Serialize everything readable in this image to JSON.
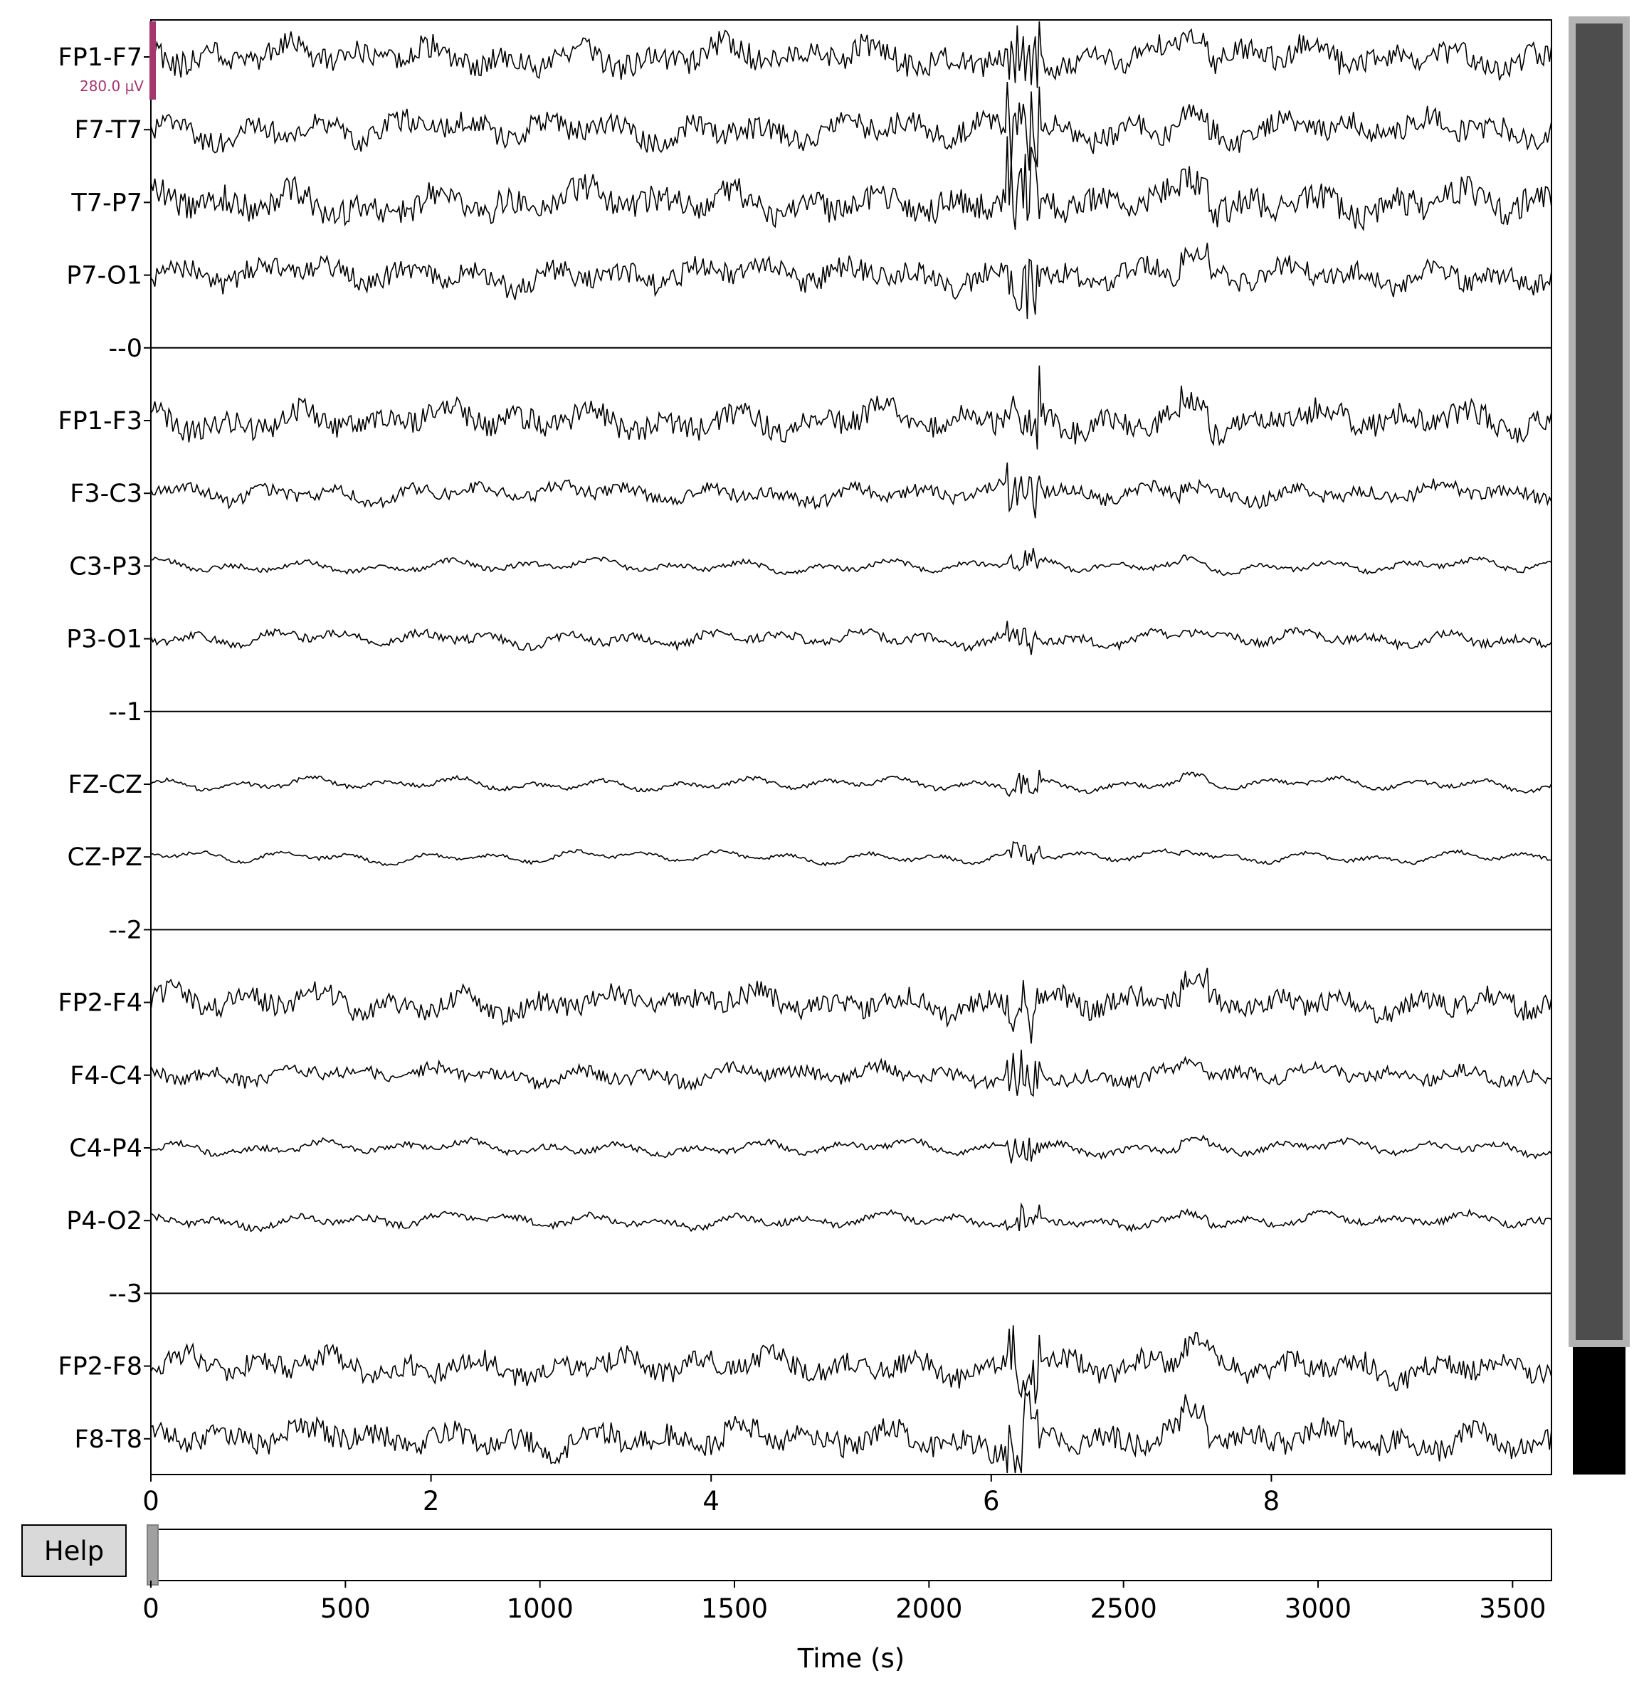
{
  "channels": [
    "FP1-F7",
    "F7-T7",
    "T7-P7",
    "P7-O1",
    "FP1-F3",
    "F3-C3",
    "C3-P3",
    "P3-O1",
    "FZ-CZ",
    "CZ-PZ",
    "FP2-F4",
    "F4-C4",
    "C4-P4",
    "P4-O2",
    "FP2-F8",
    "F8-T8"
  ],
  "rows": [
    {
      "label": "FP1-F7",
      "kind": "channel",
      "amp": 1.15,
      "noise": 0.85,
      "seed": 11
    },
    {
      "label": "F7-T7",
      "kind": "channel",
      "amp": 1.05,
      "noise": 0.85,
      "seed": 12
    },
    {
      "label": "T7-P7",
      "kind": "channel",
      "amp": 1.2,
      "noise": 0.9,
      "seed": 13
    },
    {
      "label": "P7-O1",
      "kind": "channel",
      "amp": 1.0,
      "noise": 0.85,
      "seed": 14
    },
    {
      "label": "--0",
      "kind": "separator"
    },
    {
      "label": "FP1-F3",
      "kind": "channel",
      "amp": 1.1,
      "noise": 0.85,
      "seed": 15
    },
    {
      "label": "F3-C3",
      "kind": "channel",
      "amp": 0.75,
      "noise": 0.7,
      "seed": 16
    },
    {
      "label": "C3-P3",
      "kind": "channel",
      "amp": 0.55,
      "noise": 0.35,
      "seed": 17
    },
    {
      "label": "P3-O1",
      "kind": "channel",
      "amp": 0.65,
      "noise": 0.5,
      "seed": 18
    },
    {
      "label": "--1",
      "kind": "separator"
    },
    {
      "label": "FZ-CZ",
      "kind": "channel",
      "amp": 0.55,
      "noise": 0.3,
      "seed": 19
    },
    {
      "label": "CZ-PZ",
      "kind": "channel",
      "amp": 0.55,
      "noise": 0.25,
      "seed": 20
    },
    {
      "label": "--2",
      "kind": "separator"
    },
    {
      "label": "FP2-F4",
      "kind": "channel",
      "amp": 1.0,
      "noise": 0.85,
      "seed": 21
    },
    {
      "label": "F4-C4",
      "kind": "channel",
      "amp": 0.75,
      "noise": 0.7,
      "seed": 22
    },
    {
      "label": "C4-P4",
      "kind": "channel",
      "amp": 0.6,
      "noise": 0.4,
      "seed": 23
    },
    {
      "label": "P4-O2",
      "kind": "channel",
      "amp": 0.6,
      "noise": 0.45,
      "seed": 24
    },
    {
      "label": "--3",
      "kind": "separator"
    },
    {
      "label": "FP2-F8",
      "kind": "channel",
      "amp": 1.0,
      "noise": 0.85,
      "seed": 25
    },
    {
      "label": "F8-T8",
      "kind": "channel",
      "amp": 1.1,
      "noise": 0.85,
      "seed": 26
    }
  ],
  "scale_bar": {
    "label": "280.0 µV",
    "color": "#a4376e"
  },
  "time_axis": {
    "range": [
      0,
      10
    ],
    "ticks": [
      "0",
      "2",
      "4",
      "6",
      "8"
    ],
    "tick_values": [
      0,
      2,
      4,
      6,
      8
    ]
  },
  "overview_axis": {
    "range": [
      0,
      3600
    ],
    "ticks": [
      "0",
      "500",
      "1000",
      "1500",
      "2000",
      "2500",
      "3000",
      "3500"
    ],
    "tick_values": [
      0,
      500,
      1000,
      1500,
      2000,
      2500,
      3000,
      3500
    ],
    "xlabel": "Time (s)",
    "window_start": 0,
    "window_length": 10
  },
  "channel_scrollbar": {
    "visible_fraction": 0.772,
    "track_color": "#000000",
    "thumb_color": "#4d4d4d"
  },
  "help_button": {
    "label": "Help"
  },
  "colors": {
    "trace": "#000000",
    "separator": "#000000",
    "background": "#ffffff",
    "help_bg": "#d9d9d9"
  }
}
